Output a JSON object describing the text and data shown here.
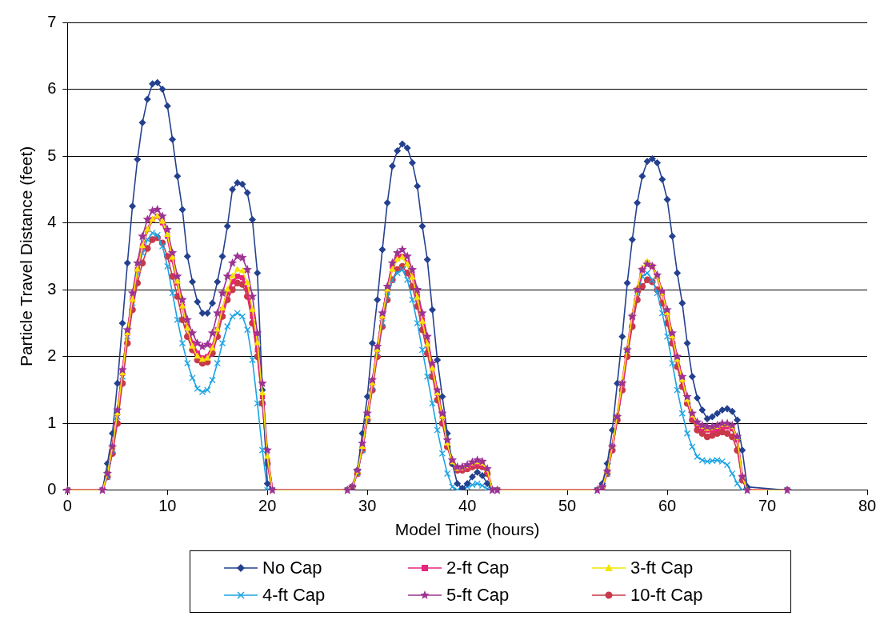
{
  "chart_data": {
    "type": "line",
    "xlabel": "Model Time (hours)",
    "ylabel": "Particle Travel Distance (feet)",
    "x": [
      0,
      3.5,
      4,
      4.5,
      5,
      5.5,
      6,
      6.5,
      7,
      7.5,
      8,
      8.5,
      9,
      9.5,
      10,
      10.5,
      11,
      11.5,
      12,
      12.5,
      13,
      13.5,
      14,
      14.5,
      15,
      15.5,
      16,
      16.5,
      17,
      17.5,
      18,
      18.5,
      19,
      19.5,
      20,
      20.5,
      28,
      28.5,
      29,
      29.5,
      30,
      30.5,
      31,
      31.5,
      32,
      32.5,
      33,
      33.5,
      34,
      34.5,
      35,
      35.5,
      36,
      36.5,
      37,
      37.5,
      38,
      38.5,
      39,
      39.5,
      40,
      40.5,
      41,
      41.5,
      42,
      42.5,
      43,
      53,
      53.5,
      54,
      54.5,
      55,
      55.5,
      56,
      56.5,
      57,
      57.5,
      58,
      58.5,
      59,
      59.5,
      60,
      60.5,
      61,
      61.5,
      62,
      62.5,
      63,
      63.5,
      64,
      64.5,
      65,
      65.5,
      66,
      66.5,
      67,
      67.5,
      68,
      72
    ],
    "series": [
      {
        "name": "No Cap",
        "color": "#24418f",
        "marker": "diamond",
        "values": [
          0,
          0,
          0.4,
          0.85,
          1.6,
          2.5,
          3.4,
          4.25,
          4.95,
          5.5,
          5.85,
          6.08,
          6.1,
          6.0,
          5.75,
          5.25,
          4.7,
          4.2,
          3.5,
          3.12,
          2.82,
          2.65,
          2.65,
          2.8,
          3.12,
          3.5,
          3.95,
          4.5,
          4.6,
          4.58,
          4.45,
          4.05,
          3.25,
          1.5,
          0.1,
          0,
          0,
          0.05,
          0.3,
          0.85,
          1.4,
          2.2,
          2.85,
          3.6,
          4.3,
          4.85,
          5.08,
          5.18,
          5.12,
          4.9,
          4.55,
          3.95,
          3.45,
          2.7,
          1.95,
          1.4,
          0.85,
          0.4,
          0.1,
          0.03,
          0.1,
          0.2,
          0.27,
          0.22,
          0.1,
          0,
          0,
          0,
          0.1,
          0.4,
          0.9,
          1.6,
          2.3,
          3.1,
          3.75,
          4.3,
          4.7,
          4.92,
          4.96,
          4.9,
          4.65,
          4.35,
          3.8,
          3.25,
          2.8,
          2.2,
          1.7,
          1.38,
          1.2,
          1.07,
          1.1,
          1.15,
          1.2,
          1.22,
          1.18,
          1.05,
          0.6,
          0.05,
          0
        ]
      },
      {
        "name": "2-ft Cap",
        "color": "#e8247c",
        "marker": "square",
        "values": [
          0,
          0,
          0.25,
          0.65,
          1.15,
          1.75,
          2.35,
          2.85,
          3.3,
          3.65,
          3.9,
          4.05,
          4.1,
          4.0,
          3.8,
          3.45,
          3.1,
          2.75,
          2.45,
          2.2,
          2.05,
          1.98,
          2.0,
          2.15,
          2.4,
          2.7,
          2.95,
          3.12,
          3.2,
          3.18,
          3.0,
          2.6,
          2.1,
          1.4,
          0.45,
          0,
          0,
          0.05,
          0.28,
          0.65,
          1.1,
          1.6,
          2.1,
          2.6,
          3.0,
          3.35,
          3.48,
          3.5,
          3.4,
          3.2,
          2.9,
          2.55,
          2.2,
          1.85,
          1.45,
          1.1,
          0.7,
          0.42,
          0.32,
          0.32,
          0.35,
          0.38,
          0.4,
          0.38,
          0.28,
          0,
          0,
          0,
          0.05,
          0.28,
          0.65,
          1.1,
          1.6,
          2.1,
          2.6,
          3.0,
          3.3,
          3.4,
          3.35,
          3.2,
          2.95,
          2.65,
          2.3,
          1.95,
          1.65,
          1.35,
          1.1,
          0.98,
          0.92,
          0.9,
          0.9,
          0.92,
          0.95,
          0.95,
          0.92,
          0.75,
          0.2,
          0,
          0
        ]
      },
      {
        "name": "3-ft Cap",
        "color": "#f5e400",
        "marker": "triangle",
        "values": [
          0,
          0,
          0.25,
          0.65,
          1.15,
          1.75,
          2.35,
          2.85,
          3.3,
          3.65,
          3.9,
          4.05,
          4.1,
          4.02,
          3.82,
          3.48,
          3.12,
          2.75,
          2.42,
          2.15,
          2.0,
          1.95,
          1.97,
          2.12,
          2.4,
          2.72,
          3.0,
          3.2,
          3.3,
          3.28,
          3.1,
          2.7,
          2.2,
          1.45,
          0.5,
          0,
          0,
          0.05,
          0.28,
          0.65,
          1.1,
          1.6,
          2.1,
          2.6,
          3.0,
          3.3,
          3.45,
          3.48,
          3.38,
          3.18,
          2.88,
          2.52,
          2.18,
          1.82,
          1.45,
          1.1,
          0.7,
          0.42,
          0.32,
          0.33,
          0.36,
          0.4,
          0.42,
          0.4,
          0.3,
          0,
          0,
          0,
          0.05,
          0.28,
          0.65,
          1.12,
          1.62,
          2.12,
          2.62,
          3.02,
          3.32,
          3.42,
          3.36,
          3.2,
          2.95,
          2.65,
          2.3,
          1.95,
          1.65,
          1.35,
          1.12,
          1.0,
          0.95,
          0.92,
          0.93,
          0.95,
          0.98,
          0.98,
          0.95,
          0.78,
          0.2,
          0,
          0
        ]
      },
      {
        "name": "4-ft Cap",
        "color": "#1ba3e3",
        "marker": "cross",
        "values": [
          0,
          0,
          0.2,
          0.6,
          1.1,
          1.7,
          2.3,
          2.8,
          3.25,
          3.55,
          3.75,
          3.85,
          3.82,
          3.65,
          3.35,
          2.95,
          2.55,
          2.2,
          1.9,
          1.68,
          1.52,
          1.47,
          1.5,
          1.65,
          1.9,
          2.2,
          2.45,
          2.6,
          2.65,
          2.6,
          2.4,
          1.95,
          1.3,
          0.6,
          0,
          0,
          0,
          0.05,
          0.25,
          0.6,
          1.05,
          1.55,
          2.05,
          2.5,
          2.9,
          3.15,
          3.25,
          3.3,
          3.15,
          2.85,
          2.5,
          2.1,
          1.7,
          1.3,
          0.9,
          0.55,
          0.25,
          0.05,
          0,
          0.02,
          0.05,
          0.08,
          0.1,
          0.07,
          0.02,
          0,
          0,
          0,
          0.05,
          0.25,
          0.65,
          1.1,
          1.6,
          2.1,
          2.6,
          2.95,
          3.2,
          3.25,
          3.15,
          2.95,
          2.65,
          2.3,
          1.9,
          1.5,
          1.15,
          0.85,
          0.65,
          0.5,
          0.45,
          0.43,
          0.44,
          0.45,
          0.43,
          0.38,
          0.25,
          0.1,
          0,
          0,
          0
        ]
      },
      {
        "name": "5-ft Cap",
        "color": "#9c3393",
        "marker": "star",
        "values": [
          0,
          0,
          0.25,
          0.65,
          1.2,
          1.8,
          2.4,
          2.95,
          3.4,
          3.8,
          4.05,
          4.18,
          4.2,
          4.1,
          3.9,
          3.55,
          3.2,
          2.85,
          2.55,
          2.35,
          2.2,
          2.15,
          2.18,
          2.35,
          2.65,
          2.95,
          3.2,
          3.4,
          3.5,
          3.48,
          3.3,
          2.9,
          2.35,
          1.6,
          0.6,
          0,
          0,
          0.05,
          0.3,
          0.7,
          1.15,
          1.65,
          2.15,
          2.65,
          3.05,
          3.4,
          3.55,
          3.6,
          3.5,
          3.3,
          3.0,
          2.65,
          2.3,
          1.9,
          1.5,
          1.15,
          0.75,
          0.45,
          0.35,
          0.35,
          0.38,
          0.42,
          0.45,
          0.43,
          0.32,
          0,
          0,
          0,
          0.05,
          0.28,
          0.65,
          1.1,
          1.6,
          2.1,
          2.6,
          3.0,
          3.3,
          3.38,
          3.35,
          3.22,
          2.98,
          2.7,
          2.35,
          2.0,
          1.7,
          1.4,
          1.15,
          1.02,
          0.97,
          0.95,
          0.95,
          0.97,
          1.0,
          1.0,
          0.97,
          0.8,
          0.2,
          0,
          0
        ]
      },
      {
        "name": "10-ft Cap",
        "color": "#c9394a",
        "marker": "circle",
        "values": [
          0,
          0,
          0.2,
          0.55,
          1.0,
          1.6,
          2.2,
          2.7,
          3.1,
          3.4,
          3.62,
          3.75,
          3.78,
          3.7,
          3.5,
          3.2,
          2.9,
          2.55,
          2.3,
          2.1,
          1.95,
          1.9,
          1.92,
          2.05,
          2.3,
          2.6,
          2.85,
          3.0,
          3.1,
          3.08,
          2.9,
          2.5,
          2.0,
          1.3,
          0.4,
          0,
          0,
          0.05,
          0.25,
          0.6,
          1.05,
          1.5,
          2.0,
          2.45,
          2.85,
          3.15,
          3.3,
          3.35,
          3.25,
          3.05,
          2.75,
          2.4,
          2.05,
          1.7,
          1.35,
          1.0,
          0.65,
          0.4,
          0.3,
          0.3,
          0.32,
          0.35,
          0.37,
          0.35,
          0.25,
          0,
          0,
          0,
          0.05,
          0.25,
          0.6,
          1.05,
          1.5,
          2.0,
          2.45,
          2.85,
          3.05,
          3.15,
          3.12,
          3.0,
          2.8,
          2.5,
          2.2,
          1.85,
          1.55,
          1.3,
          1.05,
          0.9,
          0.85,
          0.8,
          0.82,
          0.85,
          0.87,
          0.85,
          0.8,
          0.6,
          0.15,
          0,
          0
        ]
      }
    ],
    "xlim": [
      0,
      80
    ],
    "xticks": [
      0,
      10,
      20,
      30,
      40,
      50,
      60,
      70,
      80
    ],
    "ylim": [
      0,
      7
    ],
    "yticks": [
      0,
      1,
      2,
      3,
      4,
      5,
      6,
      7
    ],
    "grid": "y",
    "legend": "bottom",
    "line_style": "solid"
  }
}
